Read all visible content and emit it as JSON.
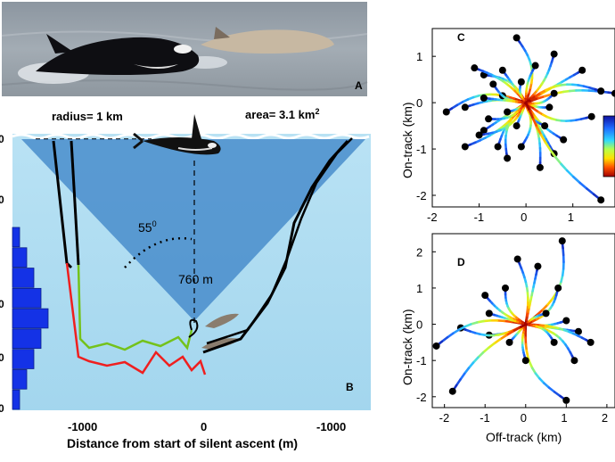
{
  "panelA": {
    "label": "A"
  },
  "panelB": {
    "label": "B",
    "radius_text": "radius= 1 km",
    "area_text": "area= 3.1 km",
    "area_sup": "2",
    "angle_text": "55",
    "angle_sup": "0",
    "depth_text": "760 m",
    "xlabel": "Distance from start of silent ascent (m)",
    "xticks": [
      "-1000",
      "0",
      "-1000"
    ],
    "yticks": [
      "0",
      "0",
      "0",
      "0",
      "0",
      "0"
    ],
    "histogram_values": [
      1,
      2,
      3,
      4,
      5,
      4,
      3,
      2,
      1
    ]
  },
  "panelC": {
    "label": "C",
    "ylabel": "On-track (km)",
    "xticks": [
      "-2",
      "-1",
      "0",
      "1"
    ],
    "yticks": [
      "1",
      "0",
      "-1",
      "-2"
    ],
    "xlim": [
      -2,
      1.9
    ],
    "ylim": [
      -2.25,
      1.6
    ],
    "endpoints": [
      [
        -0.2,
        1.4
      ],
      [
        0.6,
        1.05
      ],
      [
        1.2,
        0.7
      ],
      [
        1.9,
        0.2
      ],
      [
        1.6,
        0.25
      ],
      [
        1.4,
        -0.3
      ],
      [
        0.8,
        -0.8
      ],
      [
        0.6,
        -1.1
      ],
      [
        0.3,
        -1.4
      ],
      [
        -0.1,
        -0.95
      ],
      [
        -0.4,
        -1.2
      ],
      [
        -0.6,
        -0.95
      ],
      [
        -0.9,
        -0.6
      ],
      [
        -1.3,
        -0.95
      ],
      [
        -1.0,
        -0.7
      ],
      [
        -1.7,
        -0.2
      ],
      [
        -1.3,
        -0.1
      ],
      [
        -0.9,
        0.1
      ],
      [
        -0.5,
        0.15
      ],
      [
        -0.7,
        0.4
      ],
      [
        -0.9,
        0.6
      ],
      [
        -1.1,
        0.75
      ],
      [
        -0.5,
        0.7
      ],
      [
        0.2,
        0.8
      ],
      [
        -0.1,
        0.45
      ],
      [
        0.6,
        0.2
      ],
      [
        0.5,
        -0.1
      ],
      [
        -0.2,
        -0.5
      ],
      [
        -0.4,
        -0.2
      ],
      [
        -0.8,
        -0.35
      ],
      [
        0.4,
        -0.5
      ],
      [
        1.6,
        -2.1
      ]
    ]
  },
  "panelD": {
    "label": "D",
    "ylabel": "On-track (km)",
    "xlabel": "Off-track (km)",
    "xticks": [
      "-2",
      "-1",
      "0",
      "1",
      "2"
    ],
    "yticks": [
      "2",
      "1",
      "0",
      "-1",
      "-2"
    ],
    "xlim": [
      -2.3,
      2.2
    ],
    "ylim": [
      -2.3,
      2.5
    ],
    "endpoints": [
      [
        0.9,
        2.3
      ],
      [
        -0.2,
        1.8
      ],
      [
        0.3,
        1.6
      ],
      [
        -1.0,
        0.8
      ],
      [
        -0.5,
        1.0
      ],
      [
        0.8,
        1.0
      ],
      [
        1.0,
        0.1
      ],
      [
        1.3,
        -0.2
      ],
      [
        1.6,
        -0.5
      ],
      [
        1.2,
        -1.0
      ],
      [
        1.0,
        -2.1
      ],
      [
        0.0,
        -1.0
      ],
      [
        -0.4,
        -0.5
      ],
      [
        -0.9,
        -0.3
      ],
      [
        -1.6,
        -0.1
      ],
      [
        -2.2,
        -0.6
      ],
      [
        -1.8,
        -1.85
      ],
      [
        -0.9,
        0.3
      ],
      [
        0.5,
        0.3
      ],
      [
        0.7,
        -0.5
      ]
    ]
  },
  "colorbar": {
    "label": ""
  }
}
